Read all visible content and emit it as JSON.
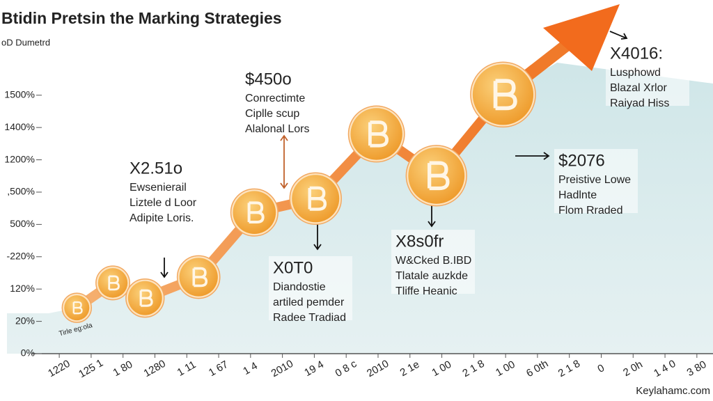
{
  "chart_data": {
    "type": "line",
    "title": "Btidin Pretsin the Marking Strategies",
    "subtitle": "oD Dumetrd",
    "watermark": "Keylahamc.com",
    "corner_note": "Tirle eg:ola",
    "series": [
      {
        "name": "Bitcoin",
        "color": "#f08a3c",
        "x": [
          0.55,
          1.68,
          2.69,
          4.37,
          6.12,
          8.04,
          9.95,
          11.83,
          13.92
        ],
        "values": [
          1.42,
          2.19,
          1.72,
          2.37,
          4.37,
          4.8,
          6.8,
          5.51,
          8.02
        ]
      }
    ],
    "xlim": [
      -0.33,
      20.2
    ],
    "xticks": [
      {
        "value": 0,
        "label": "1220"
      },
      {
        "value": 1,
        "label": "125 1"
      },
      {
        "value": 2,
        "label": "1 80"
      },
      {
        "value": 3,
        "label": "1280"
      },
      {
        "value": 4,
        "label": "1 11"
      },
      {
        "value": 5,
        "label": "1 67"
      },
      {
        "value": 6,
        "label": "1 4"
      },
      {
        "value": 7,
        "label": "2010"
      },
      {
        "value": 8,
        "label": "19 4"
      },
      {
        "value": 9,
        "label": "0 8 c"
      },
      {
        "value": 10,
        "label": "2010"
      },
      {
        "value": 11,
        "label": "2 1e"
      },
      {
        "value": 12,
        "label": "1 00"
      },
      {
        "value": 13,
        "label": "2 1 8"
      },
      {
        "value": 14,
        "label": "1 00"
      },
      {
        "value": 15,
        "label": "6 0th"
      },
      {
        "value": 16,
        "label": "2 1 8"
      },
      {
        "value": 17,
        "label": "0"
      },
      {
        "value": 18,
        "label": "2 0h"
      },
      {
        "value": 19,
        "label": "1 4 0"
      },
      {
        "value": 20,
        "label": "3 80"
      }
    ],
    "ylim": [
      0,
      10.3
    ],
    "yticks": [
      {
        "value": 0,
        "label": "0%"
      },
      {
        "value": 1,
        "label": "20%"
      },
      {
        "value": 2,
        "label": "120%"
      },
      {
        "value": 3,
        "label": "-220%"
      },
      {
        "value": 4,
        "label": "500%"
      },
      {
        "value": 5,
        "label": ",500%"
      },
      {
        "value": 6,
        "label": "1200%"
      },
      {
        "value": 7,
        "label": "1400%"
      },
      {
        "value": 8,
        "label": "1500%"
      }
    ],
    "annotations": [
      {
        "title": "$450o",
        "color": "#e8a020",
        "lines": [
          "Conrectimte",
          "Ciplle scup",
          "Alalonal Lors"
        ]
      },
      {
        "title": "X2.51o",
        "color": "#e0603a",
        "lines": [
          "Ewsenierail",
          "Liztele d Loor",
          "Adipite Loris."
        ]
      },
      {
        "title": "X4016:",
        "color": "#3a86b8",
        "lines": [
          "Lusphowd",
          "Blazal Xrlor",
          "Raiyad Hiss"
        ]
      },
      {
        "title": "$2076",
        "color": "#2a6a9a",
        "lines": [
          "Preistive Lowe",
          "Hadlnte",
          "Flom Rraded"
        ]
      },
      {
        "title": "X8s0fr",
        "color": "#8a8a8a",
        "lines": [
          "W&Cked B.IBD",
          "Tlatale auzkde",
          "Tliffe Heanic"
        ]
      },
      {
        "title": "X0T0",
        "color": "#3a90b0",
        "lines": [
          "Diandostie",
          "artiled pemder",
          "Radee Tradiad"
        ]
      }
    ]
  }
}
